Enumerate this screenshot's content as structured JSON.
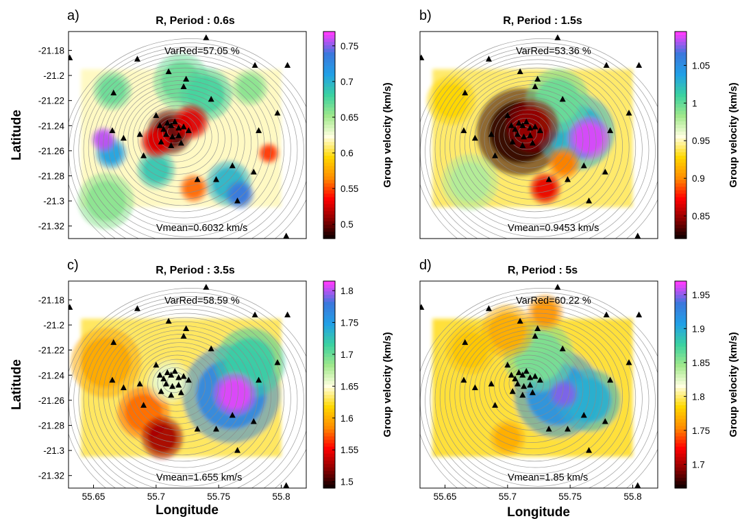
{
  "figure": {
    "xlabel": "Longitude",
    "ylabel": "Latitude",
    "colorbar_label": "Group velocity (km/s)"
  },
  "chart_data": [
    {
      "type": "heatmap",
      "panel_label": "a)",
      "title": "R, Period : 0.6s",
      "varred": "VarRed=57.05 %",
      "vmean": "Vmean=0.6032 km/s",
      "xlim": [
        55.63,
        55.82
      ],
      "ylim": [
        -21.33,
        -21.165
      ],
      "xticks": [],
      "yticks": [
        "-21.18",
        "-21.2",
        "-21.22",
        "-21.24",
        "-21.26",
        "-21.28",
        "-21.3",
        "-21.32"
      ],
      "yticks_values": [
        -21.18,
        -21.2,
        -21.22,
        -21.24,
        -21.26,
        -21.28,
        -21.3,
        -21.32
      ],
      "colorbar": {
        "min": 0.48,
        "max": 0.77,
        "ticks": [
          0.5,
          0.55,
          0.6,
          0.65,
          0.7,
          0.75
        ],
        "tick_labels": [
          "0.5",
          "0.55",
          "0.6",
          "0.65",
          "0.7",
          "0.75"
        ]
      },
      "field": {
        "background": 0.62,
        "features": [
          {
            "lon": 55.711,
            "lat": -21.245,
            "value": 0.5,
            "radius": 0.013
          },
          {
            "lon": 55.728,
            "lat": -21.237,
            "value": 0.53,
            "radius": 0.01
          },
          {
            "lon": 55.7,
            "lat": -21.253,
            "value": 0.53,
            "radius": 0.009
          },
          {
            "lon": 55.658,
            "lat": -21.251,
            "value": 0.76,
            "radius": 0.007
          },
          {
            "lon": 55.664,
            "lat": -21.262,
            "value": 0.71,
            "radius": 0.009
          },
          {
            "lon": 55.767,
            "lat": -21.295,
            "value": 0.74,
            "radius": 0.008
          },
          {
            "lon": 55.758,
            "lat": -21.286,
            "value": 0.7,
            "radius": 0.013
          },
          {
            "lon": 55.7,
            "lat": -21.275,
            "value": 0.69,
            "radius": 0.011
          },
          {
            "lon": 55.74,
            "lat": -21.215,
            "value": 0.68,
            "radius": 0.015
          },
          {
            "lon": 55.72,
            "lat": -21.205,
            "value": 0.67,
            "radius": 0.016
          },
          {
            "lon": 55.775,
            "lat": -21.21,
            "value": 0.66,
            "radius": 0.01
          },
          {
            "lon": 55.665,
            "lat": -21.212,
            "value": 0.67,
            "radius": 0.011
          },
          {
            "lon": 55.79,
            "lat": -21.262,
            "value": 0.55,
            "radius": 0.006
          },
          {
            "lon": 55.66,
            "lat": -21.3,
            "value": 0.66,
            "radius": 0.016
          },
          {
            "lon": 55.73,
            "lat": -21.29,
            "value": 0.56,
            "radius": 0.008
          }
        ]
      }
    },
    {
      "type": "heatmap",
      "panel_label": "b)",
      "title": "R, Period : 1.5s",
      "varred": "VarRed=53.36 %",
      "vmean": "Vmean=0.9453 km/s",
      "xlim": [
        55.63,
        55.82
      ],
      "ylim": [
        -21.33,
        -21.165
      ],
      "xticks": [],
      "yticks": [],
      "yticks_values": [],
      "colorbar": {
        "min": 0.82,
        "max": 1.095,
        "ticks": [
          0.85,
          0.9,
          0.95,
          1.0,
          1.05
        ],
        "tick_labels": [
          "0.85",
          "0.9",
          "0.95",
          "1",
          "1.05"
        ]
      },
      "field": {
        "background": 0.94,
        "features": [
          {
            "lon": 55.71,
            "lat": -21.245,
            "value": 0.83,
            "radius": 0.025
          },
          {
            "lon": 55.72,
            "lat": -21.24,
            "value": 0.85,
            "radius": 0.015
          },
          {
            "lon": 55.765,
            "lat": -21.25,
            "value": 1.09,
            "radius": 0.012
          },
          {
            "lon": 55.755,
            "lat": -21.245,
            "value": 1.03,
            "radius": 0.022
          },
          {
            "lon": 55.74,
            "lat": -21.22,
            "value": 1.0,
            "radius": 0.018
          },
          {
            "lon": 55.73,
            "lat": -21.29,
            "value": 0.87,
            "radius": 0.009
          },
          {
            "lon": 55.745,
            "lat": -21.27,
            "value": 0.9,
            "radius": 0.009
          },
          {
            "lon": 55.67,
            "lat": -21.285,
            "value": 0.98,
            "radius": 0.016
          },
          {
            "lon": 55.655,
            "lat": -21.22,
            "value": 0.93,
            "radius": 0.014
          }
        ]
      }
    },
    {
      "type": "heatmap",
      "panel_label": "c)",
      "title": "R, Period : 3.5s",
      "varred": "VarRed=58.59 %",
      "vmean": "Vmean=1.655 km/s",
      "xlim": [
        55.63,
        55.82
      ],
      "ylim": [
        -21.33,
        -21.165
      ],
      "xticks": [
        "55.65",
        "55.7",
        "55.75",
        "55.8"
      ],
      "xticks_values": [
        55.65,
        55.7,
        55.75,
        55.8
      ],
      "yticks": [
        "-21.18",
        "-21.2",
        "-21.22",
        "-21.24",
        "-21.26",
        "-21.28",
        "-21.3",
        "-21.32"
      ],
      "yticks_values": [
        -21.18,
        -21.2,
        -21.22,
        -21.24,
        -21.26,
        -21.28,
        -21.3,
        -21.32
      ],
      "colorbar": {
        "min": 1.49,
        "max": 1.815,
        "ticks": [
          1.5,
          1.55,
          1.6,
          1.65,
          1.7,
          1.75,
          1.8
        ],
        "tick_labels": [
          "1.5",
          "1.55",
          "1.6",
          "1.65",
          "1.7",
          "1.75",
          "1.8"
        ]
      },
      "field": {
        "background": 1.63,
        "features": [
          {
            "lon": 55.763,
            "lat": -21.255,
            "value": 1.81,
            "radius": 0.012
          },
          {
            "lon": 55.76,
            "lat": -21.255,
            "value": 1.77,
            "radius": 0.028
          },
          {
            "lon": 55.775,
            "lat": -21.23,
            "value": 1.72,
            "radius": 0.02
          },
          {
            "lon": 55.705,
            "lat": -21.29,
            "value": 1.53,
            "radius": 0.012
          },
          {
            "lon": 55.69,
            "lat": -21.27,
            "value": 1.58,
            "radius": 0.015
          },
          {
            "lon": 55.66,
            "lat": -21.23,
            "value": 1.6,
            "radius": 0.02
          },
          {
            "lon": 55.71,
            "lat": -21.245,
            "value": 1.66,
            "radius": 0.012
          }
        ]
      }
    },
    {
      "type": "heatmap",
      "panel_label": "d)",
      "title": "R, Period : 5s",
      "varred": "VarRed=60.22 %",
      "vmean": "Vmean=1.85 km/s",
      "xlim": [
        55.63,
        55.82
      ],
      "ylim": [
        -21.33,
        -21.165
      ],
      "xticks": [
        "55.65",
        "55.7",
        "55.75",
        "55.8"
      ],
      "xticks_values": [
        55.65,
        55.7,
        55.75,
        55.8
      ],
      "yticks": [],
      "yticks_values": [],
      "colorbar": {
        "min": 1.665,
        "max": 1.97,
        "ticks": [
          1.7,
          1.75,
          1.8,
          1.85,
          1.9,
          1.95
        ],
        "tick_labels": [
          "1.7",
          "1.75",
          "1.8",
          "1.85",
          "1.9",
          "1.95"
        ]
      },
      "field": {
        "background": 1.79,
        "features": [
          {
            "lon": 55.74,
            "lat": -21.255,
            "value": 1.92,
            "radius": 0.025
          },
          {
            "lon": 55.745,
            "lat": -21.255,
            "value": 1.95,
            "radius": 0.008
          },
          {
            "lon": 55.765,
            "lat": -21.26,
            "value": 1.9,
            "radius": 0.018
          },
          {
            "lon": 55.725,
            "lat": -21.225,
            "value": 1.86,
            "radius": 0.02
          },
          {
            "lon": 55.7,
            "lat": -21.29,
            "value": 1.77,
            "radius": 0.01
          },
          {
            "lon": 55.7,
            "lat": -21.205,
            "value": 1.77,
            "radius": 0.015
          },
          {
            "lon": 55.73,
            "lat": -21.19,
            "value": 1.76,
            "radius": 0.01
          },
          {
            "lon": 55.67,
            "lat": -21.22,
            "value": 1.78,
            "radius": 0.014
          }
        ]
      }
    }
  ],
  "stations": [
    {
      "lon": 55.631,
      "lat": -21.186
    },
    {
      "lon": 55.685,
      "lat": -21.187
    },
    {
      "lon": 55.74,
      "lat": -21.17
    },
    {
      "lon": 55.779,
      "lat": -21.192
    },
    {
      "lon": 55.805,
      "lat": -21.192
    },
    {
      "lon": 55.666,
      "lat": -21.214
    },
    {
      "lon": 55.71,
      "lat": -21.197
    },
    {
      "lon": 55.722,
      "lat": -21.209
    },
    {
      "lon": 55.724,
      "lat": -21.203
    },
    {
      "lon": 55.744,
      "lat": -21.219
    },
    {
      "lon": 55.665,
      "lat": -21.244
    },
    {
      "lon": 55.674,
      "lat": -21.25
    },
    {
      "lon": 55.687,
      "lat": -21.247
    },
    {
      "lon": 55.7,
      "lat": -21.232
    },
    {
      "lon": 55.703,
      "lat": -21.24
    },
    {
      "lon": 55.706,
      "lat": -21.243
    },
    {
      "lon": 55.709,
      "lat": -21.238
    },
    {
      "lon": 55.712,
      "lat": -21.24
    },
    {
      "lon": 55.715,
      "lat": -21.237
    },
    {
      "lon": 55.718,
      "lat": -21.242
    },
    {
      "lon": 55.708,
      "lat": -21.247
    },
    {
      "lon": 55.713,
      "lat": -21.249
    },
    {
      "lon": 55.718,
      "lat": -21.248
    },
    {
      "lon": 55.722,
      "lat": -21.241
    },
    {
      "lon": 55.726,
      "lat": -21.244
    },
    {
      "lon": 55.704,
      "lat": -21.253
    },
    {
      "lon": 55.712,
      "lat": -21.256
    },
    {
      "lon": 55.72,
      "lat": -21.254
    },
    {
      "lon": 55.797,
      "lat": -21.23
    },
    {
      "lon": 55.782,
      "lat": -21.244
    },
    {
      "lon": 55.761,
      "lat": -21.272
    },
    {
      "lon": 55.778,
      "lat": -21.277
    },
    {
      "lon": 55.733,
      "lat": -21.283
    },
    {
      "lon": 55.748,
      "lat": -21.283
    },
    {
      "lon": 55.765,
      "lat": -21.3
    },
    {
      "lon": 55.69,
      "lat": -21.264
    },
    {
      "lon": 55.804,
      "lat": -21.328
    }
  ],
  "style": {
    "contour_color": "#8a8a8a",
    "station_color": "#000000",
    "colormap": [
      "#000000",
      "#8b0000",
      "#ff0000",
      "#ff8c00",
      "#ffd700",
      "#ffffe0",
      "#a0e88c",
      "#3cd2a0",
      "#21a0e6",
      "#3c78dc",
      "#ff3cff"
    ]
  }
}
